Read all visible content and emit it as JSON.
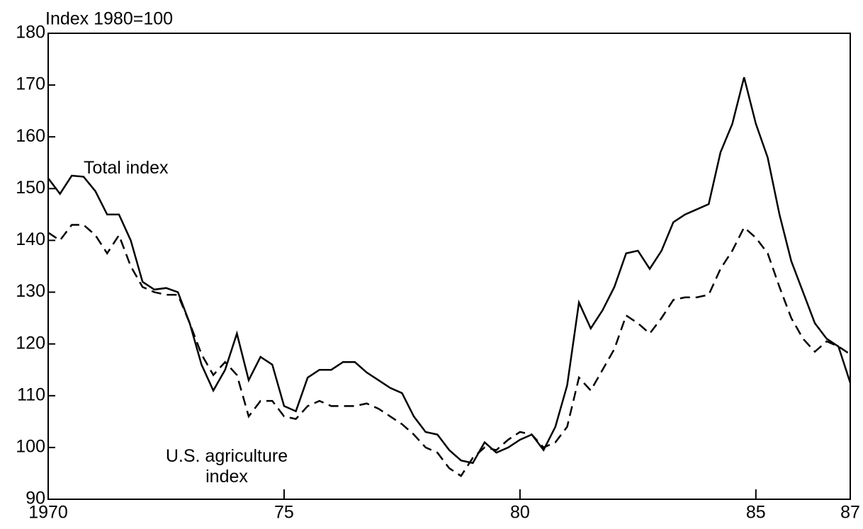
{
  "chart_data": {
    "type": "line",
    "ylabel": "Index 1980=100",
    "x": [
      1970,
      1970.25,
      1970.5,
      1970.75,
      1971,
      1971.25,
      1971.5,
      1971.75,
      1972,
      1972.25,
      1972.5,
      1972.75,
      1973,
      1973.25,
      1973.5,
      1973.75,
      1974,
      1974.25,
      1974.5,
      1974.75,
      1975,
      1975.25,
      1975.5,
      1975.75,
      1976,
      1976.25,
      1976.5,
      1976.75,
      1977,
      1977.25,
      1977.5,
      1977.75,
      1978,
      1978.25,
      1978.5,
      1978.75,
      1979,
      1979.25,
      1979.5,
      1979.75,
      1980,
      1980.25,
      1980.5,
      1980.75,
      1981,
      1981.25,
      1981.5,
      1981.75,
      1982,
      1982.25,
      1982.5,
      1982.75,
      1983,
      1983.25,
      1983.5,
      1983.75,
      1984,
      1984.25,
      1984.5,
      1984.75,
      1985,
      1985.25,
      1985.5,
      1985.75,
      1986,
      1986.25,
      1986.5,
      1986.75,
      1987
    ],
    "series": [
      {
        "name": "Total index",
        "color": "#000000",
        "style": "solid",
        "values": [
          152,
          149,
          152.5,
          152.3,
          149.5,
          145,
          145,
          140,
          132,
          130.5,
          130.8,
          130,
          124,
          116,
          111,
          115,
          122,
          113,
          117.5,
          116,
          108,
          107,
          113.5,
          115,
          115,
          116.5,
          116.5,
          114.5,
          113,
          111.5,
          110.5,
          106,
          103,
          102.5,
          99.5,
          97.5,
          97,
          101,
          99,
          100,
          101.5,
          102.5,
          99.5,
          104,
          112,
          128,
          123,
          126.5,
          131,
          137.5,
          138,
          134.5,
          138,
          143.5,
          145,
          146,
          147,
          157,
          162.5,
          171.5,
          162.5,
          156,
          145,
          136,
          130,
          124,
          121,
          119.5,
          112.5
        ]
      },
      {
        "name": "U.S. agriculture index",
        "color": "#000000",
        "style": "dashed",
        "values": [
          141.5,
          140,
          143,
          143,
          141,
          137.5,
          141,
          135,
          131,
          130,
          129.5,
          129.5,
          124,
          118,
          114,
          116.5,
          114,
          106,
          109,
          109,
          106,
          105.5,
          108,
          109,
          108,
          108,
          108,
          108.5,
          107.5,
          106,
          104.5,
          102.5,
          100,
          99,
          96,
          94.5,
          98,
          100,
          99.5,
          101.5,
          103,
          102.5,
          100,
          101,
          104,
          113.5,
          111,
          115,
          119,
          125.5,
          124,
          122,
          125,
          128.5,
          129,
          129,
          129.5,
          134.5,
          138,
          142.5,
          140.5,
          137.5,
          131,
          125,
          121,
          118.5,
          120.5,
          119.5,
          118
        ]
      }
    ],
    "xlim": [
      1970,
      1987
    ],
    "xticks": [
      {
        "value": 1970,
        "label": "1970"
      },
      {
        "value": 1975,
        "label": "75"
      },
      {
        "value": 1980,
        "label": "80"
      },
      {
        "value": 1985,
        "label": "85"
      },
      {
        "value": 1987,
        "label": "87"
      }
    ],
    "ylim": [
      90,
      180
    ],
    "yticks": [
      90,
      100,
      110,
      120,
      130,
      140,
      150,
      160,
      170,
      180
    ],
    "grid": false
  }
}
